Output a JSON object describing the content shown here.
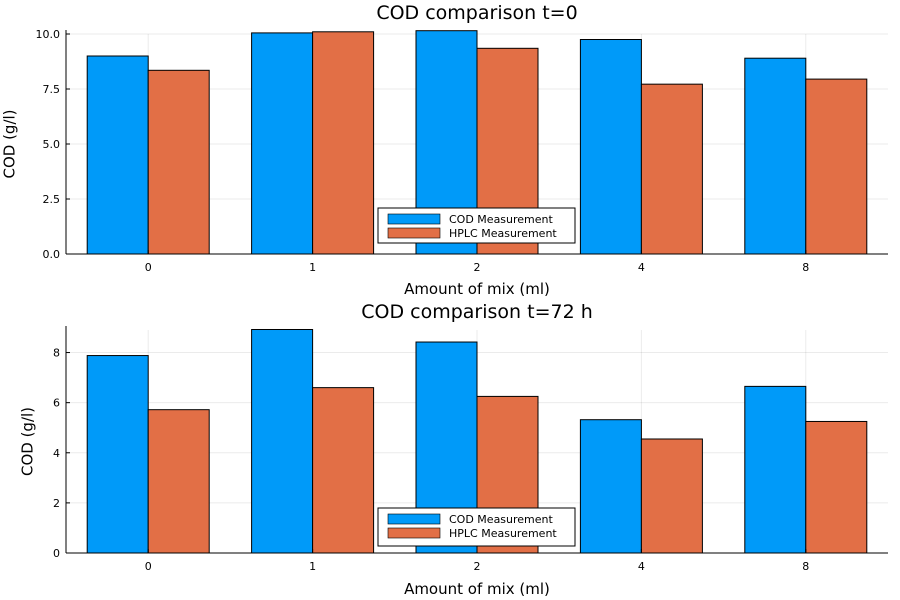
{
  "chart_data": [
    {
      "type": "bar",
      "title": "COD comparison t=0",
      "xlabel": "Amount of mix (ml)",
      "ylabel": "COD (g/l)",
      "categories": [
        "0",
        "1",
        "2",
        "4",
        "8"
      ],
      "ylim": [
        0,
        10
      ],
      "yticks": [
        0,
        2.5,
        5,
        7.5,
        10
      ],
      "ytick_labels": [
        "0.0",
        "2.5",
        "5.0",
        "7.5",
        "10.0"
      ],
      "grid": true,
      "legend_position": "bottom-center",
      "series": [
        {
          "name": "COD Measurement",
          "color": "#009af9",
          "values": [
            9.0,
            10.05,
            10.15,
            9.75,
            8.9
          ]
        },
        {
          "name": "HPLC Measurement",
          "color": "#e26f46",
          "values": [
            8.35,
            10.1,
            9.35,
            7.72,
            7.95
          ]
        }
      ]
    },
    {
      "type": "bar",
      "title": "COD comparison t=72 h",
      "xlabel": "Amount of mix (ml)",
      "ylabel": "COD (g/l)",
      "categories": [
        "0",
        "1",
        "2",
        "4",
        "8"
      ],
      "ylim": [
        0,
        8.9
      ],
      "yticks": [
        0,
        2,
        4,
        6,
        8
      ],
      "ytick_labels": [
        "0",
        "2",
        "4",
        "6",
        "8"
      ],
      "grid": true,
      "legend_position": "bottom-center",
      "series": [
        {
          "name": "COD Measurement",
          "color": "#009af9",
          "values": [
            7.88,
            8.92,
            8.42,
            5.32,
            6.65
          ]
        },
        {
          "name": "HPLC Measurement",
          "color": "#e26f46",
          "values": [
            5.72,
            6.6,
            6.25,
            4.55,
            5.25
          ]
        }
      ]
    }
  ]
}
